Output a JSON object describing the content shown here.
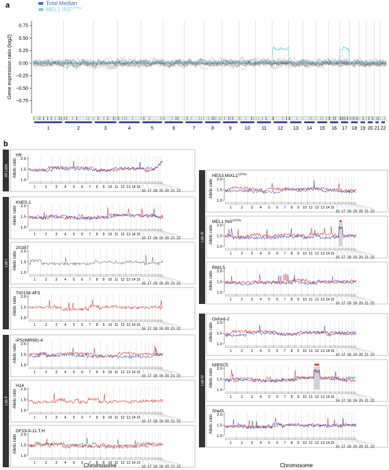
{
  "panel_a": {
    "letter": "a",
    "legend": [
      {
        "label": "Total Median",
        "color": "#3a6fc4"
      },
      {
        "label": "MEL1 INS",
        "sup": "GFP/w",
        "color": "#6fd3d0"
      }
    ],
    "ylabel": "Gene expression ratio (log2)",
    "yticks": [
      "0.75",
      "0.50",
      "0.25",
      "0.00",
      "−0.25",
      "−0.50",
      "−0.75"
    ],
    "chromosomes": [
      "1",
      "2",
      "3",
      "4",
      "5",
      "6",
      "7",
      "8",
      "9",
      "10",
      "11",
      "12",
      "13",
      "14",
      "15",
      "16",
      "17",
      "18",
      "19",
      "20",
      "21",
      "22"
    ]
  },
  "panel_b": {
    "letter": "b",
    "ylabel": "Allelic ratio",
    "yticks": [
      "2.0",
      "1.5",
      "1.0"
    ],
    "xlabel": "Chromosome",
    "chrom_top": [
      "1",
      "2",
      "3",
      "4",
      "5",
      "6",
      "7",
      "8",
      "9",
      "10",
      "11",
      "12",
      "13",
      "14",
      "15"
    ],
    "chrom_bottom": [
      "16",
      "17",
      "18",
      "19",
      "20",
      "21",
      "22"
    ],
    "colors": {
      "red": "#d42a2a",
      "blue": "#3448a8",
      "grey": "#666666"
    },
    "left_column": [
      {
        "lab": "All Labs",
        "panels": [
          {
            "name": "H9",
            "sup": ""
          }
        ]
      },
      {
        "lab": "Lab I",
        "panels": [
          {
            "name": "KhES-1",
            "sup": ""
          },
          {
            "name": "201B7",
            "sup": ""
          },
          {
            "name": "TIG108-4F3",
            "sup": ""
          }
        ]
      },
      {
        "lab": "Lab II",
        "panels": [
          {
            "name": "iPS(IMR90)-4",
            "sup": ""
          },
          {
            "name": "H14",
            "sup": ""
          },
          {
            "name": "DF19-9-11.T.H",
            "sup": ""
          }
        ]
      }
    ],
    "right_column": [
      {
        "lab": "Lab III",
        "panels": [
          {
            "name": "HES3 MIXL1",
            "sup": "GFP/w"
          },
          {
            "name": "MEL1 INS",
            "sup": "GFP/w"
          },
          {
            "name": "RM3.5",
            "sup": ""
          }
        ]
      },
      {
        "lab": "Lab IV",
        "panels": [
          {
            "name": "Oxford-2",
            "sup": ""
          },
          {
            "name": "NIBSC5",
            "sup": ""
          },
          {
            "name": "Shef3",
            "sup": ""
          }
        ]
      }
    ]
  },
  "chart_data": [
    {
      "type": "line",
      "title": "",
      "ylabel": "Gene expression ratio (log2)",
      "xlabel": "",
      "ylim": [
        -1.0,
        0.85
      ],
      "x": [
        "1",
        "2",
        "3",
        "4",
        "5",
        "6",
        "7",
        "8",
        "9",
        "10",
        "11",
        "12",
        "13",
        "14",
        "15",
        "16",
        "17",
        "18",
        "19",
        "20",
        "21",
        "22"
      ],
      "series": [
        {
          "name": "Total Median",
          "values": [
            0,
            0,
            0,
            0,
            0,
            0,
            0,
            0,
            0,
            0,
            0,
            0,
            0,
            0,
            0,
            0,
            0,
            0,
            0,
            0,
            0,
            0
          ]
        },
        {
          "name": "MEL1 INS GFP/w",
          "values": [
            0,
            0,
            0,
            0,
            0,
            0,
            0,
            0,
            0,
            0,
            0,
            0.3,
            0,
            0,
            0,
            0,
            0.3,
            0,
            0,
            0,
            0,
            0
          ]
        }
      ]
    },
    {
      "type": "line",
      "title": "",
      "ylabel": "Allelic ratio",
      "xlabel": "Chromosome",
      "ylim": [
        1.0,
        2.1
      ],
      "x": [
        "1",
        "2",
        "3",
        "4",
        "5",
        "6",
        "7",
        "8",
        "9",
        "10",
        "11",
        "12",
        "13",
        "14",
        "15",
        "16",
        "17",
        "18",
        "19",
        "20",
        "21",
        "22"
      ],
      "series": [
        {
          "name": "H9",
          "values": [
            1.4,
            1.4,
            1.4,
            1.4,
            1.4,
            1.4,
            1.4,
            1.4,
            1.4,
            1.4,
            1.4,
            1.4,
            1.4,
            1.4,
            1.4,
            1.4,
            1.4,
            1.4,
            1.4,
            1.6,
            1.6,
            1.8
          ]
        },
        {
          "name": "MEL1 INS GFP/w",
          "values": [
            1.4,
            1.4,
            1.4,
            1.4,
            1.4,
            1.4,
            1.4,
            1.4,
            1.4,
            1.4,
            1.4,
            1.4,
            1.4,
            1.4,
            1.4,
            1.4,
            1.9,
            1.4,
            1.4,
            1.4,
            1.4,
            1.4
          ]
        },
        {
          "name": "NIBSC5",
          "values": [
            1.6,
            1.5,
            1.5,
            1.5,
            1.5,
            1.5,
            1.5,
            1.5,
            1.5,
            1.5,
            1.5,
            1.9,
            1.5,
            1.5,
            1.5,
            1.5,
            1.5,
            1.5,
            1.5,
            1.5,
            1.5,
            1.5
          ]
        }
      ]
    }
  ]
}
